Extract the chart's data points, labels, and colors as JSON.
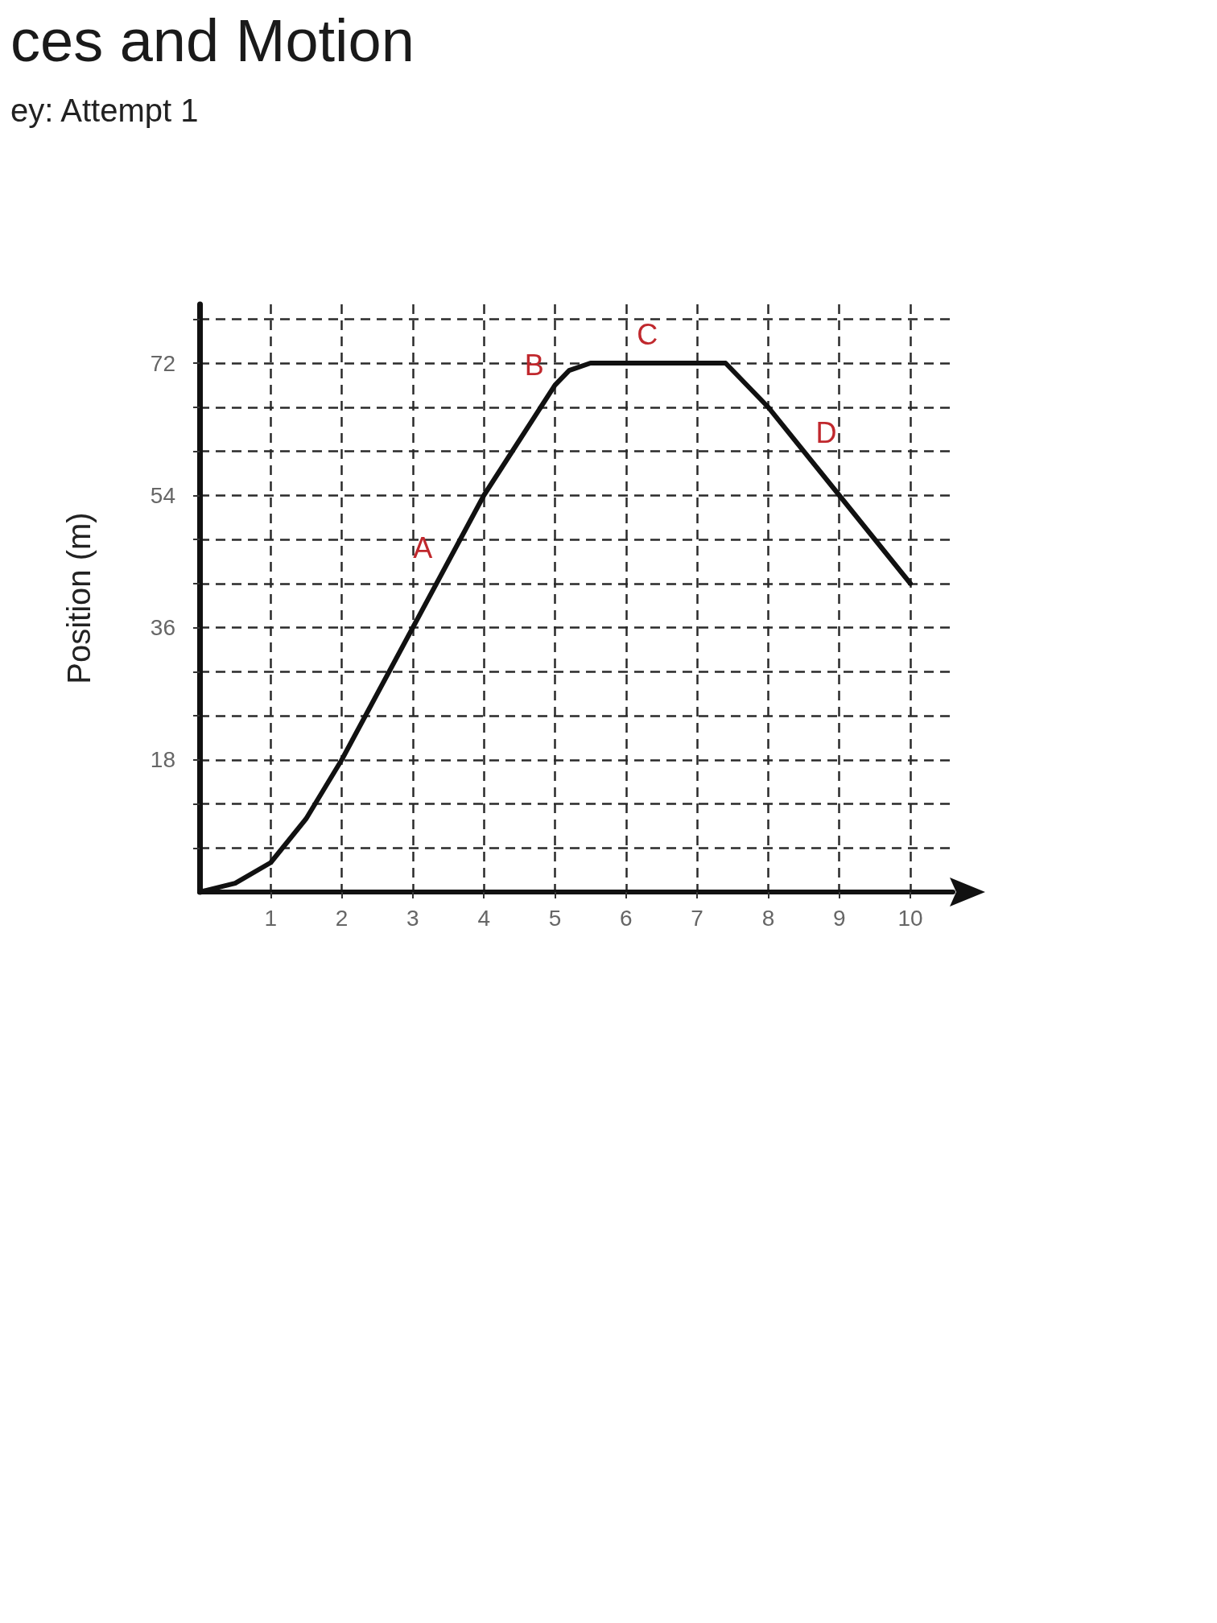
{
  "chart_data": {
    "type": "line",
    "title": "ces and Motion",
    "subtitle": "ey: Attempt 1",
    "ylabel": "Position (m)",
    "x": [
      0,
      0.5,
      1,
      1.5,
      2,
      3,
      4,
      4.4,
      4.8,
      5,
      5.2,
      5.5,
      7.4,
      8,
      9,
      10
    ],
    "values": [
      0,
      1.2,
      4,
      10,
      18,
      36,
      54,
      60,
      66,
      69,
      71,
      72,
      72,
      66,
      54,
      42
    ],
    "color": "#111111",
    "marker": "none",
    "line_style": "solid",
    "grid": true,
    "xlim": [
      0,
      10.6
    ],
    "xticks": [
      1,
      2,
      3,
      4,
      5,
      6,
      7,
      8,
      9,
      10
    ],
    "ylim": [
      0,
      80
    ],
    "yticks": [
      {
        "value": 6,
        "label": null
      },
      {
        "value": 12,
        "label": null
      },
      18,
      {
        "value": 24,
        "label": null
      },
      {
        "value": 30,
        "label": null
      },
      36,
      {
        "value": 42,
        "label": null
      },
      {
        "value": 48,
        "label": null
      },
      54,
      {
        "value": 60,
        "label": null
      },
      {
        "value": 66,
        "label": null
      },
      72,
      {
        "value": 78,
        "label": null
      }
    ],
    "annotations": [
      {
        "text": "A",
        "x": 3.5,
        "y": 45
      },
      {
        "text": "B",
        "x": 5,
        "y": 69
      },
      {
        "text": "C",
        "x": 6.3,
        "y": 72
      },
      {
        "text": "D",
        "x": 8.5,
        "y": 60
      }
    ]
  }
}
